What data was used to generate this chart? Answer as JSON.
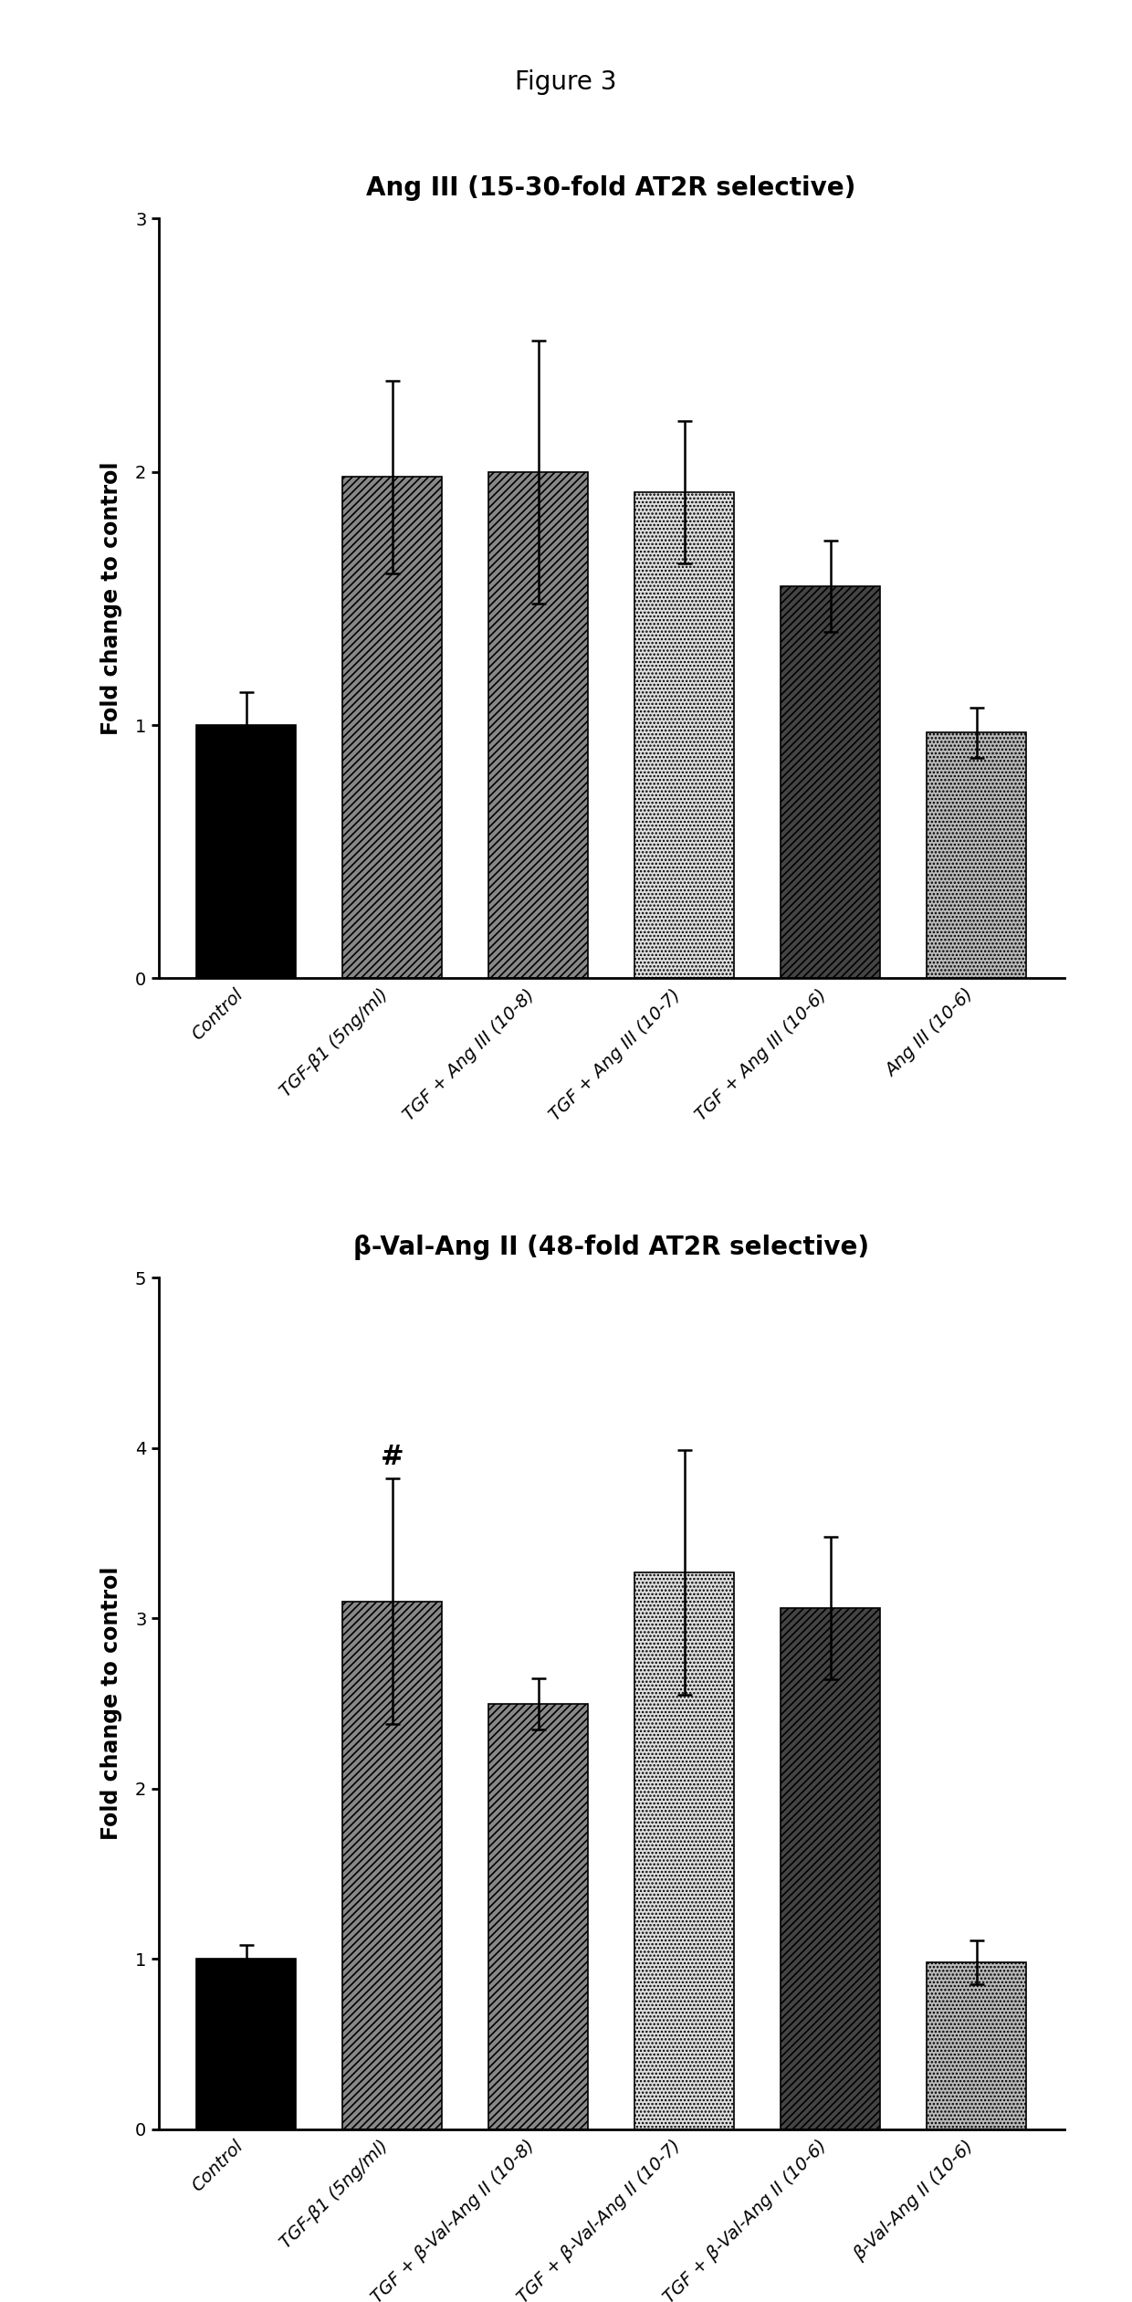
{
  "figure_title": "Figure 3",
  "chart1": {
    "title": "Ang III (15-30-fold AT2R selective)",
    "ylabel": "Fold change to control",
    "ylim": [
      0,
      3
    ],
    "yticks": [
      0,
      1,
      2,
      3
    ],
    "categories": [
      "Control",
      "TGF-β1 (5ng/ml)",
      "TGF + Ang III (10-8)",
      "TGF + Ang III (10-7)",
      "TGF + Ang III (10-6)",
      "Ang III (10-6)"
    ],
    "values": [
      1.0,
      1.98,
      2.0,
      1.92,
      1.55,
      0.97
    ],
    "errors": [
      0.13,
      0.38,
      0.52,
      0.28,
      0.18,
      0.1
    ],
    "bar_configs": [
      {
        "facecolor": "#000000",
        "hatch": "",
        "edgecolor": "#000000"
      },
      {
        "facecolor": "#888888",
        "hatch": "////",
        "edgecolor": "#000000"
      },
      {
        "facecolor": "#888888",
        "hatch": "////",
        "edgecolor": "#000000"
      },
      {
        "facecolor": "#e0e0e0",
        "hatch": "....",
        "edgecolor": "#000000"
      },
      {
        "facecolor": "#444444",
        "hatch": "////",
        "edgecolor": "#000000"
      },
      {
        "facecolor": "#bbbbbb",
        "hatch": "....",
        "edgecolor": "#000000"
      }
    ],
    "annotation": null,
    "annotation_bar_idx": null
  },
  "chart2": {
    "title": "β-Val-Ang II (48-fold AT2R selective)",
    "ylabel": "Fold change to control",
    "ylim": [
      0,
      5
    ],
    "yticks": [
      0,
      1,
      2,
      3,
      4,
      5
    ],
    "categories": [
      "Control",
      "TGF-β1 (5ng/ml)",
      "TGF + β-Val-Ang II (10-8)",
      "TGF + β-Val-Ang II (10-7)",
      "TGF + β-Val-Ang II (10-6)",
      "β-Val-Ang II (10-6)"
    ],
    "values": [
      1.0,
      3.1,
      2.5,
      3.27,
      3.06,
      0.98
    ],
    "errors": [
      0.08,
      0.72,
      0.15,
      0.72,
      0.42,
      0.13
    ],
    "bar_configs": [
      {
        "facecolor": "#000000",
        "hatch": "",
        "edgecolor": "#000000"
      },
      {
        "facecolor": "#888888",
        "hatch": "////",
        "edgecolor": "#000000"
      },
      {
        "facecolor": "#888888",
        "hatch": "////",
        "edgecolor": "#000000"
      },
      {
        "facecolor": "#e0e0e0",
        "hatch": "....",
        "edgecolor": "#000000"
      },
      {
        "facecolor": "#444444",
        "hatch": "////",
        "edgecolor": "#000000"
      },
      {
        "facecolor": "#bbbbbb",
        "hatch": "....",
        "edgecolor": "#000000"
      }
    ],
    "annotation": "#",
    "annotation_bar_idx": 1
  },
  "bar_width": 0.68,
  "tick_fontsize": 14,
  "label_fontsize": 17,
  "title_fontsize": 20,
  "figure_title_fontsize": 20,
  "xlabel_rotation": 45,
  "background_color": "#ffffff"
}
